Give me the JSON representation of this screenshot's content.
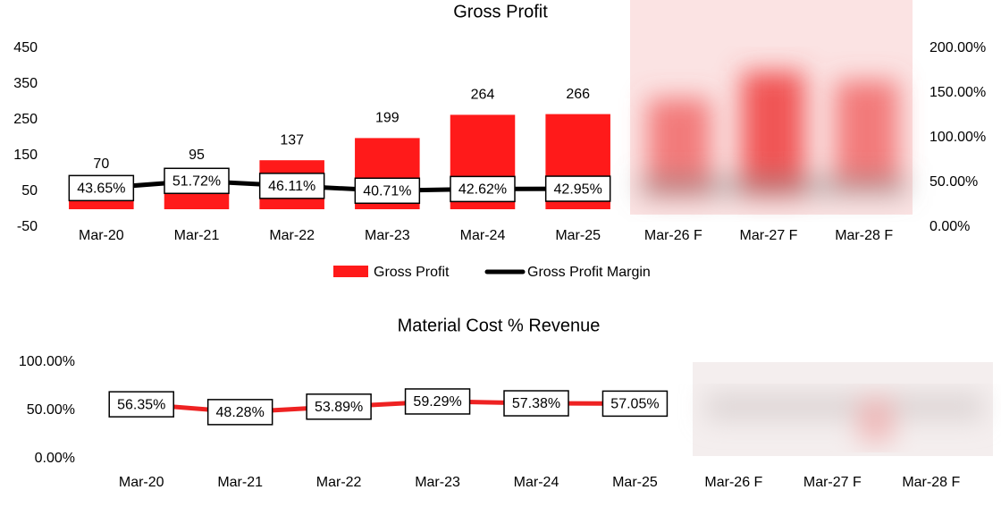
{
  "chart_data": [
    {
      "type": "combo",
      "title": "Gross Profit",
      "categories": [
        "Mar-20",
        "Mar-21",
        "Mar-22",
        "Mar-23",
        "Mar-24",
        "Mar-25",
        "Mar-26 F",
        "Mar-27 F",
        "Mar-28 F"
      ],
      "series": [
        {
          "name": "Gross Profit",
          "type": "bar",
          "color": "#ff1a1a",
          "values": [
            70,
            95,
            137,
            199,
            264,
            266,
            null,
            null,
            null
          ]
        },
        {
          "name": "Gross Profit Margin",
          "type": "line",
          "axis": "y2",
          "color": "#000000",
          "values": [
            43.65,
            51.72,
            46.11,
            40.71,
            42.62,
            42.95,
            null,
            null,
            null
          ],
          "value_labels": [
            "43.65%",
            "51.72%",
            "46.11%",
            "40.71%",
            "42.62%",
            "42.95%",
            null,
            null,
            null
          ]
        }
      ],
      "ylim": [
        -50,
        450
      ],
      "yticks": [
        -50,
        50,
        150,
        250,
        350,
        450
      ],
      "y2lim": [
        0,
        200
      ],
      "y2ticks": [
        {
          "value": 0,
          "label": "0.00%"
        },
        {
          "value": 50,
          "label": "50.00%"
        },
        {
          "value": 100,
          "label": "100.00%"
        },
        {
          "value": 150,
          "label": "150.00%"
        },
        {
          "value": 200,
          "label": "200.00%"
        }
      ],
      "legend": "bottom",
      "grid": false
    },
    {
      "type": "line",
      "title": "Material Cost % Revenue",
      "categories": [
        "Mar-20",
        "Mar-21",
        "Mar-22",
        "Mar-23",
        "Mar-24",
        "Mar-25",
        "Mar-26 F",
        "Mar-27 F",
        "Mar-28 F"
      ],
      "color": "#ee2222",
      "values": [
        56.35,
        48.28,
        53.89,
        59.29,
        57.38,
        57.05,
        null,
        null,
        null
      ],
      "value_labels": [
        "56.35%",
        "48.28%",
        "53.89%",
        "59.29%",
        "57.38%",
        "57.05%",
        null,
        null,
        null
      ],
      "ylim": [
        0,
        100
      ],
      "yticks": [
        {
          "value": 0,
          "label": "0.00%"
        },
        {
          "value": 50,
          "label": "50.00%"
        },
        {
          "value": 100,
          "label": "100.00%"
        }
      ],
      "grid": false
    }
  ]
}
